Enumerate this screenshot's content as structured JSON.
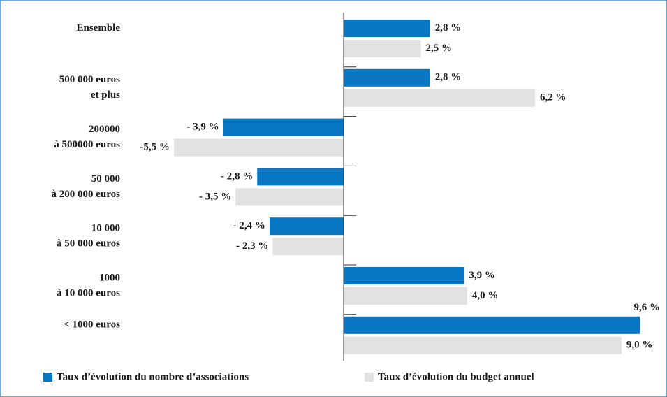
{
  "chart_data": {
    "type": "bar",
    "orientation": "horizontal",
    "categories": [
      [
        "Ensemble"
      ],
      [
        "500 000 euros",
        "et plus"
      ],
      [
        "200000",
        "à 500000 euros"
      ],
      [
        "50 000",
        "à 200 000 euros"
      ],
      [
        "10 000",
        "à 50 000 euros"
      ],
      [
        "1000",
        "à 10 000 euros"
      ],
      [
        "< 1000 euros"
      ]
    ],
    "series": [
      {
        "name": "Taux d’évolution du nombre d’associations",
        "color": "#0a77c4",
        "values": [
          2.8,
          2.8,
          -3.9,
          -2.8,
          -2.4,
          3.9,
          9.6
        ],
        "value_labels": [
          "2,8 %",
          "2,8 %",
          "- 3,9 %",
          "- 2,8 %",
          "- 2,4 %",
          "3,9 %",
          "9,6 %"
        ]
      },
      {
        "name": "Taux d’évolution du budget annuel",
        "color": "#e2e2e2",
        "values": [
          2.5,
          6.2,
          -5.5,
          -3.5,
          -2.3,
          4.0,
          9.0
        ],
        "value_labels": [
          "2,5 %",
          "6,2 %",
          "-5,5 %",
          "- 3,5 %",
          "- 2,3 %",
          "4,0 %",
          "9,0 %"
        ]
      }
    ],
    "xlim": [
      -6.5,
      9.9
    ],
    "legend": "bottom"
  }
}
